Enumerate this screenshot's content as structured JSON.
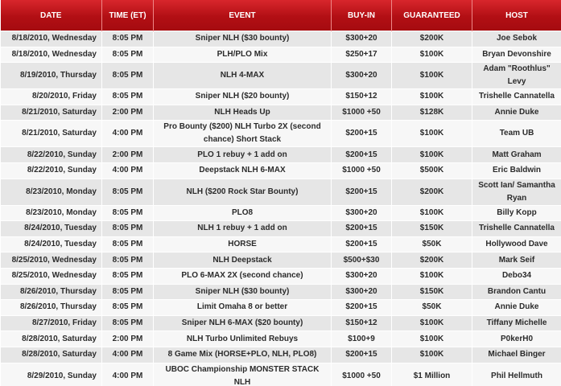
{
  "table": {
    "header": [
      "DATE",
      "TIME (ET)",
      "EVENT",
      "BUY-IN",
      "GUARANTEED",
      "HOST"
    ],
    "rows": [
      [
        "8/18/2010, Wednesday",
        "8:05 PM",
        "Sniper NLH ($30 bounty)",
        "$300+20",
        "$200K",
        "Joe Sebok"
      ],
      [
        "8/18/2010, Wednesday",
        "8:05 PM",
        "PLH/PLO Mix",
        "$250+17",
        "$100K",
        "Bryan Devonshire"
      ],
      [
        "8/19/2010, Thursday",
        "8:05 PM",
        "NLH 4-MAX",
        "$300+20",
        "$100K",
        "Adam \"Roothlus\" Levy"
      ],
      [
        "8/20/2010, Friday",
        "8:05 PM",
        "Sniper NLH ($20 bounty)",
        "$150+12",
        "$100K",
        "Trishelle Cannatella"
      ],
      [
        "8/21/2010, Saturday",
        "2:00 PM",
        "NLH Heads Up",
        "$1000 +50",
        "$128K",
        "Annie Duke"
      ],
      [
        "8/21/2010, Saturday",
        "4:00 PM",
        "Pro Bounty ($200) NLH Turbo 2X (second chance) Short Stack",
        "$200+15",
        "$100K",
        "Team UB"
      ],
      [
        "8/22/2010, Sunday",
        "2:00 PM",
        "PLO 1 rebuy + 1 add on",
        "$200+15",
        "$100K",
        "Matt Graham"
      ],
      [
        "8/22/2010, Sunday",
        "4:00 PM",
        "Deepstack NLH 6-MAX",
        "$1000 +50",
        "$500K",
        "Eric Baldwin"
      ],
      [
        "8/23/2010, Monday",
        "8:05 PM",
        "NLH ($200 Rock Star Bounty)",
        "$200+15",
        "$200K",
        "Scott Ian/ Samantha Ryan"
      ],
      [
        "8/23/2010, Monday",
        "8:05 PM",
        "PLO8",
        "$300+20",
        "$100K",
        "Billy Kopp"
      ],
      [
        "8/24/2010, Tuesday",
        "8:05 PM",
        "NLH 1 rebuy + 1 add on",
        "$200+15",
        "$150K",
        "Trishelle Cannatella"
      ],
      [
        "8/24/2010, Tuesday",
        "8:05 PM",
        "HORSE",
        "$200+15",
        "$50K",
        "Hollywood Dave"
      ],
      [
        "8/25/2010, Wednesday",
        "8:05 PM",
        "NLH Deepstack",
        "$500+$30",
        "$200K",
        "Mark Seif"
      ],
      [
        "8/25/2010, Wednesday",
        "8:05 PM",
        "PLO 6-MAX 2X (second chance)",
        "$300+20",
        "$100K",
        "Debo34"
      ],
      [
        "8/26/2010, Thursday",
        "8:05 PM",
        "Sniper NLH ($30 bounty)",
        "$300+20",
        "$150K",
        "Brandon Cantu"
      ],
      [
        "8/26/2010, Thursday",
        "8:05 PM",
        "Limit Omaha 8 or better",
        "$200+15",
        "$50K",
        "Annie Duke"
      ],
      [
        "8/27/2010, Friday",
        "8:05 PM",
        "Sniper NLH 6-MAX ($20 bounty)",
        "$150+12",
        "$100K",
        "Tiffany Michelle"
      ],
      [
        "8/28/2010, Saturday",
        "2:00 PM",
        "NLH Turbo Unlimited Rebuys",
        "$100+9",
        "$100K",
        "P0kerH0"
      ],
      [
        "8/28/2010, Saturday",
        "4:00 PM",
        "8 Game Mix (HORSE+PLO, NLH, PLO8)",
        "$200+15",
        "$100K",
        "Michael Binger"
      ],
      [
        "8/29/2010, Sunday",
        "4:00 PM",
        "UBOC Championship MONSTER STACK NLH",
        "$1000 +50",
        "$1 Million",
        "Phil Hellmuth"
      ]
    ]
  }
}
